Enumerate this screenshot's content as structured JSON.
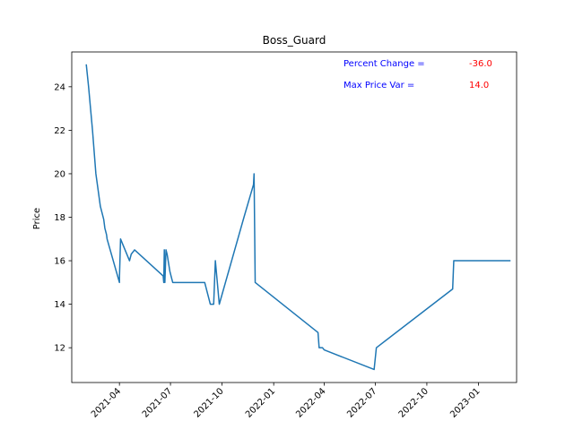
{
  "chart_data": {
    "type": "line",
    "title": "Boss_Guard",
    "xlabel": "",
    "ylabel": "Price",
    "xlim": [
      "2021-01-06",
      "2023-03-10"
    ],
    "ylim": [
      10.4,
      25.6
    ],
    "yticks": [
      12,
      14,
      16,
      18,
      20,
      22,
      24
    ],
    "xticks": [
      "2021-04",
      "2021-07",
      "2021-10",
      "2022-01",
      "2022-04",
      "2022-07",
      "2022-10",
      "2023-01"
    ],
    "grid": false,
    "line_color": "#1f77b4",
    "series": [
      {
        "x": [
          "2021-02-01",
          "2021-02-05",
          "2021-02-12",
          "2021-02-18",
          "2021-02-26",
          "2021-03-04",
          "2021-03-06",
          "2021-03-09",
          "2021-03-10",
          "2021-04-01",
          "2021-04-01",
          "2021-04-03",
          "2021-04-19",
          "2021-04-22",
          "2021-04-28",
          "2021-06-18",
          "2021-06-19",
          "2021-06-20",
          "2021-06-21",
          "2021-06-23",
          "2021-06-25",
          "2021-06-30",
          "2021-07-05",
          "2021-08-31",
          "2021-09-10",
          "2021-09-16",
          "2021-09-19",
          "2021-09-26",
          "2021-11-09",
          "2021-11-26",
          "2021-11-27",
          "2021-11-29",
          "2022-03-21",
          "2022-03-23",
          "2022-03-29",
          "2022-04-01",
          "2022-06-29",
          "2022-07-03",
          "2022-11-16",
          "2022-11-18",
          "2023-02-26"
        ],
        "values": [
          25,
          24,
          22,
          20,
          18.5,
          17.9,
          17.5,
          17.2,
          17,
          15,
          15.2,
          17,
          16,
          16.3,
          16.5,
          15.3,
          15,
          16.5,
          15,
          16.5,
          16.3,
          15.5,
          15,
          15,
          14,
          14,
          16,
          14,
          18,
          19.5,
          20,
          15,
          12.7,
          12,
          12,
          11.9,
          11,
          12,
          14.7,
          16,
          16
        ]
      }
    ],
    "annotations": [
      {
        "label": "Percent Change =",
        "value": "-36.0",
        "label_color": "#0000ff",
        "value_color": "#ff0000"
      },
      {
        "label": "Max Price Var =",
        "value": "14.0",
        "label_color": "#0000ff",
        "value_color": "#ff0000"
      }
    ]
  }
}
